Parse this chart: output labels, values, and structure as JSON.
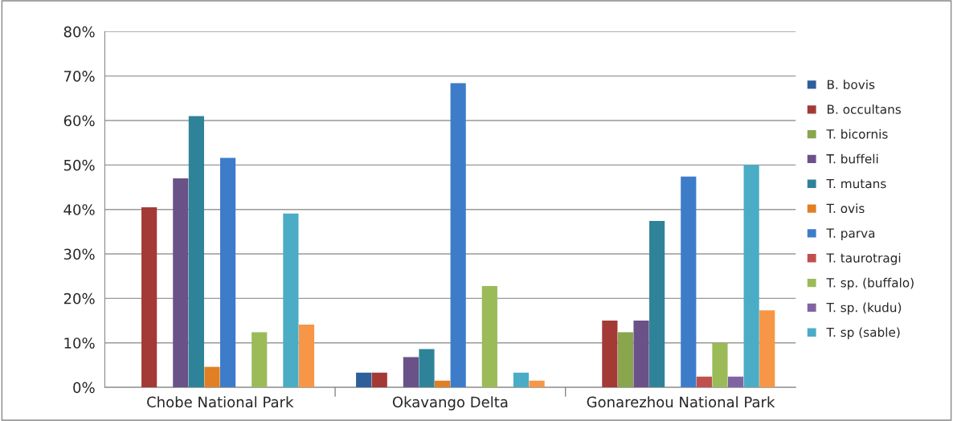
{
  "chart_data": {
    "type": "bar",
    "categories": [
      "Chobe National Park",
      "Okavango Delta",
      "Gonarezhou National Park"
    ],
    "series": [
      {
        "name": "B. bovis",
        "color": "#2f5f9a",
        "values": [
          0,
          3.3,
          0
        ]
      },
      {
        "name": "B. occultans",
        "color": "#a33a36",
        "values": [
          40.5,
          3.3,
          15
        ]
      },
      {
        "name": "T. bicornis",
        "color": "#89a54e",
        "values": [
          0,
          0,
          12.4
        ]
      },
      {
        "name": "T. buffeli",
        "color": "#6a5289",
        "values": [
          47,
          6.8,
          15
        ]
      },
      {
        "name": "T. mutans",
        "color": "#2f8399",
        "values": [
          61,
          8.6,
          37.4
        ]
      },
      {
        "name": "T. ovis",
        "color": "#e07f24",
        "values": [
          4.6,
          1.5,
          0
        ]
      },
      {
        "name": "T. parva",
        "color": "#3d7cc9",
        "values": [
          51.6,
          68.4,
          47.4
        ]
      },
      {
        "name": "T. taurotragi",
        "color": "#c0504d",
        "values": [
          0,
          0,
          2.4
        ]
      },
      {
        "name": "T. sp. (buffalo)",
        "color": "#9bbb59",
        "values": [
          12.4,
          22.8,
          10
        ]
      },
      {
        "name": "T. sp. (kudu)",
        "color": "#8064a2",
        "values": [
          0,
          0,
          2.4
        ]
      },
      {
        "name": "T. sp (sable)",
        "color": "#4bacc6",
        "values": [
          39.1,
          3.3,
          50
        ]
      },
      {
        "color": "#f79646",
        "values": [
          14.1,
          1.5,
          17.3
        ]
      }
    ],
    "ylim": [
      0,
      80
    ],
    "yticks": [
      {
        "value": 0,
        "label": "0%"
      },
      {
        "value": 10,
        "label": "10%"
      },
      {
        "value": 20,
        "label": "20%"
      },
      {
        "value": 30,
        "label": "30%"
      },
      {
        "value": 40,
        "label": "40%"
      },
      {
        "value": 50,
        "label": "50%"
      },
      {
        "value": 60,
        "label": "60%"
      },
      {
        "value": 70,
        "label": "70%"
      },
      {
        "value": 80,
        "label": "80%"
      }
    ],
    "grid": "y",
    "legend": "right"
  }
}
